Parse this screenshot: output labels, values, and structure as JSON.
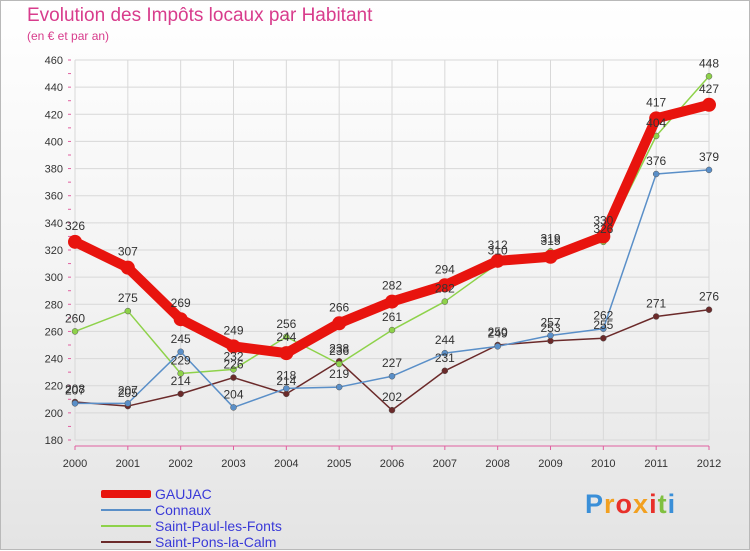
{
  "chart_data": {
    "type": "line",
    "title": "Evolution des Impôts locaux par Habitant",
    "subtitle": "(en € et par an)",
    "xlabel": "",
    "ylabel": "",
    "categories": [
      "2000",
      "2001",
      "2002",
      "2003",
      "2004",
      "2005",
      "2006",
      "2007",
      "2008",
      "2009",
      "2010",
      "2011",
      "2012"
    ],
    "ylim": [
      180,
      460
    ],
    "yticks": [
      180,
      200,
      220,
      240,
      260,
      280,
      300,
      320,
      340,
      360,
      380,
      400,
      420,
      440,
      460
    ],
    "series": [
      {
        "name": "GAUJAC",
        "color": "#e8140e",
        "values": [
          326,
          307,
          269,
          249,
          244,
          266,
          282,
          294,
          312,
          315,
          330,
          417,
          427
        ]
      },
      {
        "name": "Connaux",
        "color": "#5a8fc8",
        "values": [
          207,
          207,
          245,
          204,
          218,
          219,
          227,
          244,
          249,
          257,
          262,
          376,
          379
        ]
      },
      {
        "name": "Saint-Paul-les-Fonts",
        "color": "#8ed24a",
        "values": [
          260,
          275,
          229,
          232,
          256,
          236,
          261,
          282,
          310,
          319,
          326,
          404,
          448
        ]
      },
      {
        "name": "Saint-Pons-la-Calm",
        "color": "#6b2a2a",
        "values": [
          208,
          205,
          214,
          226,
          214,
          238,
          202,
          231,
          250,
          253,
          255,
          271,
          276
        ]
      }
    ]
  },
  "logo": {
    "text": "Proxiti",
    "colors": [
      "#3a8fd8",
      "#f2a020",
      "#e8302a",
      "#f2a020",
      "#e8302a",
      "#80c040",
      "#3a8fd8"
    ]
  }
}
